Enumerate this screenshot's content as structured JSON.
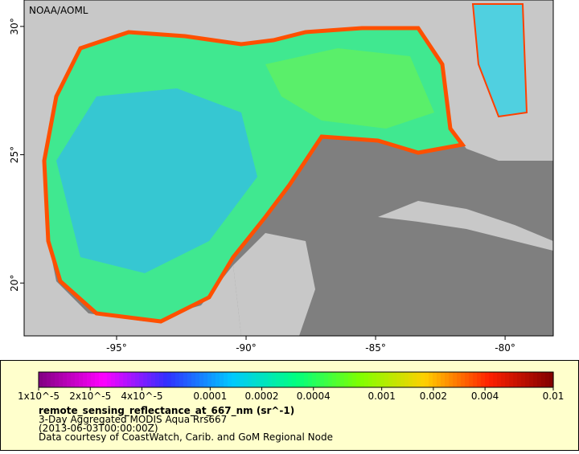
{
  "map": {
    "credit": "NOAA/AOML",
    "xlim": [
      -98.57,
      -78.14
    ],
    "ylim": [
      17.94,
      31.03
    ],
    "xticks": [
      {
        "value": -95,
        "label": "-95°"
      },
      {
        "value": -90,
        "label": "-90°"
      },
      {
        "value": -85,
        "label": "-85°"
      },
      {
        "value": -80,
        "label": "-80°"
      }
    ],
    "yticks": [
      {
        "value": 20,
        "label": "20°"
      },
      {
        "value": 25,
        "label": "25°"
      },
      {
        "value": 30,
        "label": "30°"
      }
    ]
  },
  "legend": {
    "title": "remote_sensing_reflectance_at_667_nm (sr^-1)",
    "lines": [
      "3-Day Aggregated MODIS Aqua Rrs667",
      "(2013-06-03T00:00:00Z)",
      "Data courtesy of CoastWatch, Carib. and GoM Regional Node"
    ],
    "scale": "log",
    "lim": [
      1e-05,
      0.01
    ],
    "ticks": [
      {
        "value": 1e-05,
        "label": "1x10^-5"
      },
      {
        "value": 2e-05,
        "label": "2x10^-5"
      },
      {
        "value": 4e-05,
        "label": "4x10^-5"
      },
      0.0001,
      0.0002,
      0.0004,
      0.001,
      0.002,
      0.004,
      0.01
    ],
    "colors": [
      "#800080",
      "#ff00ff",
      "#3030ff",
      "#00c8ff",
      "#00ff80",
      "#80ff00",
      "#ffd000",
      "#ff2000",
      "#800000"
    ]
  }
}
